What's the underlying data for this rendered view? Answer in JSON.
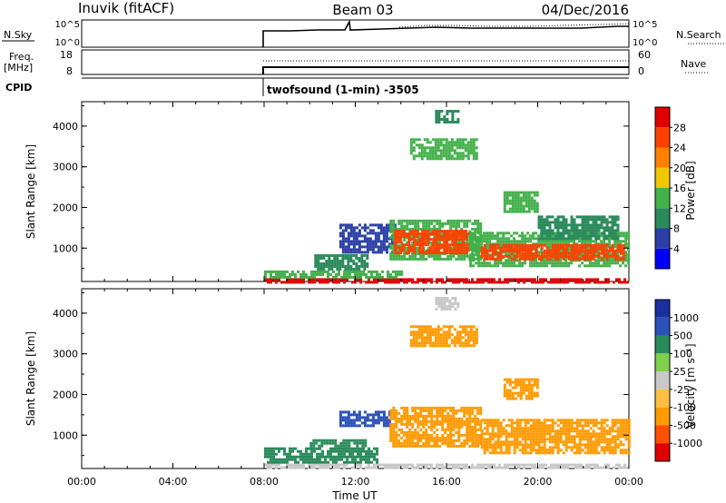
{
  "header": {
    "station": "Inuvik (fitACF)",
    "beam": "Beam 03",
    "date": "04/Dec/2016"
  },
  "panels": {
    "noise": {
      "left_label": "N.Sky",
      "right_label": "N.Search",
      "ticks_left": [
        "10^5",
        "10^0"
      ],
      "ticks_right": [
        "10^5",
        "10^0"
      ]
    },
    "freq": {
      "left_label_1": "Freq.",
      "left_label_2": "[MHz]",
      "right_label": "Nave",
      "ticks_left": [
        "18",
        "8"
      ],
      "ticks_right": [
        "60",
        "0"
      ]
    },
    "cpid": {
      "label": "CPID",
      "mode_text": "twofsound (1-min) -3505"
    }
  },
  "colors": {
    "power": [
      "#0000ff",
      "#2b3fa6",
      "#2a8a5b",
      "#43b04a",
      "#f0c800",
      "#ff7f00",
      "#ff4000",
      "#e00000"
    ],
    "velocity": [
      "#e00000",
      "#ff5000",
      "#ff9a00",
      "#ffbf40",
      "#c8c8c8",
      "#7fd04a",
      "#2a8a5b",
      "#2b50b8",
      "#1a2fa0"
    ]
  },
  "chart_data": [
    {
      "type": "heatmap",
      "name": "power",
      "ylabel": "Slant Range [km]",
      "y_ticks": [
        "1000",
        "2000",
        "3000",
        "4000"
      ],
      "ylim": [
        180,
        4600
      ],
      "xlim": [
        0,
        24
      ],
      "colorbar": {
        "label": "Power [dB]",
        "ticks": [
          "4",
          "8",
          "12",
          "16",
          "20",
          "24",
          "28"
        ],
        "range": [
          0,
          32
        ]
      },
      "regions": [
        {
          "t0": 8.0,
          "t1": 24.0,
          "r0": 180,
          "r1": 260,
          "value": 28
        },
        {
          "t0": 8.0,
          "t1": 14.0,
          "r0": 260,
          "r1": 450,
          "value": 14
        },
        {
          "t0": 10.2,
          "t1": 12.5,
          "r0": 500,
          "r1": 850,
          "value": 10
        },
        {
          "t0": 11.3,
          "t1": 13.8,
          "r0": 900,
          "r1": 1600,
          "value": 6
        },
        {
          "t0": 13.5,
          "t1": 17.5,
          "r0": 700,
          "r1": 1700,
          "value": 14
        },
        {
          "t0": 13.7,
          "t1": 17.0,
          "r0": 900,
          "r1": 1450,
          "value": 26
        },
        {
          "t0": 17.0,
          "t1": 24.0,
          "r0": 550,
          "r1": 1400,
          "value": 14
        },
        {
          "t0": 17.5,
          "t1": 23.8,
          "r0": 700,
          "r1": 1100,
          "value": 26
        },
        {
          "t0": 14.4,
          "t1": 17.3,
          "r0": 3200,
          "r1": 3700,
          "value": 12
        },
        {
          "t0": 18.5,
          "t1": 20.0,
          "r0": 1900,
          "r1": 2400,
          "value": 12
        },
        {
          "t0": 20.0,
          "t1": 23.5,
          "r0": 1200,
          "r1": 1800,
          "value": 8
        },
        {
          "t0": 15.5,
          "t1": 16.5,
          "r0": 4100,
          "r1": 4400,
          "value": 10
        }
      ]
    },
    {
      "type": "heatmap",
      "name": "velocity",
      "ylabel": "Slant Range [km]",
      "y_ticks": [
        "1000",
        "2000",
        "3000",
        "4000"
      ],
      "ylim": [
        180,
        4600
      ],
      "xlim": [
        0,
        24
      ],
      "x_ticks": [
        "00:00",
        "04:00",
        "08:00",
        "12:00",
        "16:00",
        "20:00",
        "00:00"
      ],
      "xlabel": "Time UT",
      "colorbar": {
        "label": "Velocity [m s^-1]",
        "ticks": [
          "1000",
          "500",
          "100",
          "25",
          "-25",
          "-100",
          "-500",
          "-1000"
        ]
      },
      "regions": [
        {
          "t0": 8.0,
          "t1": 24.0,
          "r0": 180,
          "r1": 300,
          "value": 20
        },
        {
          "t0": 8.0,
          "t1": 13.0,
          "r0": 300,
          "r1": 700,
          "value": 100
        },
        {
          "t0": 10.0,
          "t1": 12.5,
          "r0": 700,
          "r1": 900,
          "value": 100
        },
        {
          "t0": 11.3,
          "t1": 13.5,
          "r0": 1200,
          "r1": 1600,
          "value": 500
        },
        {
          "t0": 13.5,
          "t1": 17.5,
          "r0": 700,
          "r1": 1700,
          "value": -200
        },
        {
          "t0": 17.5,
          "t1": 24.0,
          "r0": 550,
          "r1": 1400,
          "value": -200
        },
        {
          "t0": 14.4,
          "t1": 17.3,
          "r0": 3200,
          "r1": 3700,
          "value": -120
        },
        {
          "t0": 18.5,
          "t1": 20.0,
          "r0": 1900,
          "r1": 2400,
          "value": -120
        },
        {
          "t0": 15.5,
          "t1": 16.5,
          "r0": 4100,
          "r1": 4400,
          "value": 0
        }
      ]
    }
  ]
}
